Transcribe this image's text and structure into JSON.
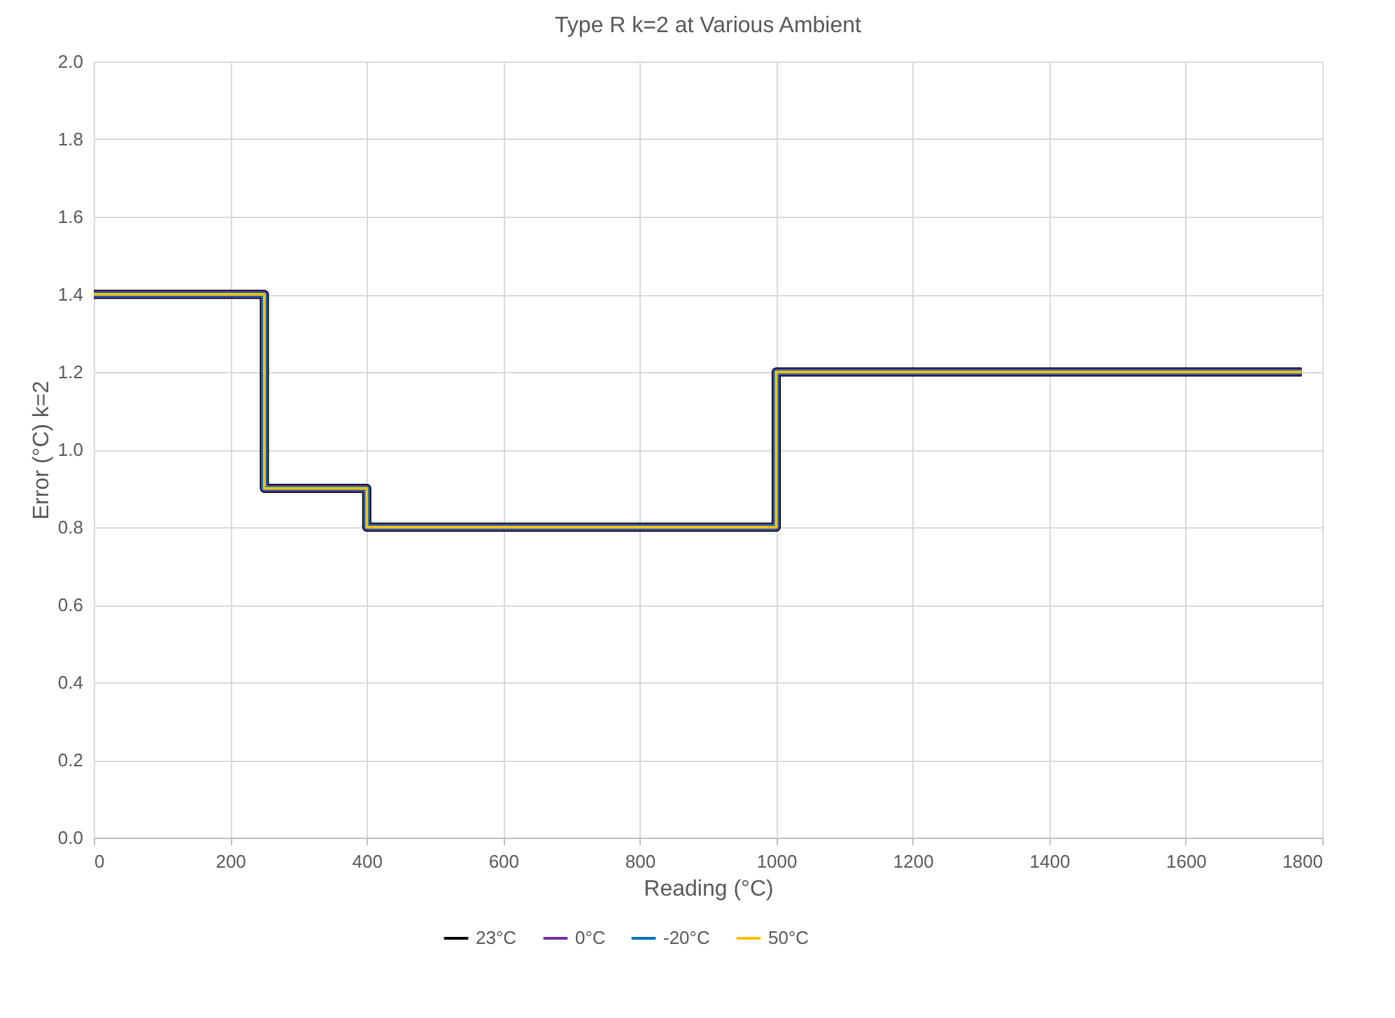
{
  "chart_data": {
    "type": "line",
    "title": "Type R k=2 at Various Ambient",
    "xlabel": "Reading (°C)",
    "ylabel": "Error (°C) k=2",
    "x": [
      0,
      250,
      250,
      400,
      400,
      1000,
      1000,
      1770
    ],
    "series": [
      {
        "name": "23°C",
        "color": "#000000",
        "values": [
          1.4,
          1.4,
          0.9,
          0.9,
          0.8,
          0.8,
          1.2,
          1.2
        ]
      },
      {
        "name": "0°C",
        "color": "#7030a0",
        "values": [
          1.4,
          1.4,
          0.9,
          0.9,
          0.8,
          0.8,
          1.2,
          1.2
        ]
      },
      {
        "name": "-20°C",
        "color": "#0070c0",
        "values": [
          1.4,
          1.4,
          0.9,
          0.9,
          0.8,
          0.8,
          1.2,
          1.2
        ]
      },
      {
        "name": "50°C",
        "color": "#ffc000",
        "values": [
          1.4,
          1.4,
          0.9,
          0.9,
          0.8,
          0.8,
          1.2,
          1.2
        ]
      }
    ],
    "xlim": [
      0,
      1800
    ],
    "xticks": [
      0,
      200,
      400,
      600,
      800,
      {
        "value": 1000,
        "label": "1000"
      },
      {
        "value": 1200,
        "label": "1200"
      },
      {
        "value": 1400,
        "label": "1400"
      },
      {
        "value": 1600,
        "label": "1600"
      },
      {
        "value": 1800,
        "label": "1800"
      }
    ],
    "ylim": [
      0,
      2
    ],
    "yticks": [
      {
        "value": 0,
        "label": "0.0"
      },
      0.2,
      0.4,
      0.6,
      0.8,
      {
        "value": 1,
        "label": "1.0"
      },
      1.2,
      1.4,
      1.6,
      1.8,
      {
        "value": 2,
        "label": "2.0"
      }
    ],
    "grid": true,
    "legend": "bottom"
  }
}
